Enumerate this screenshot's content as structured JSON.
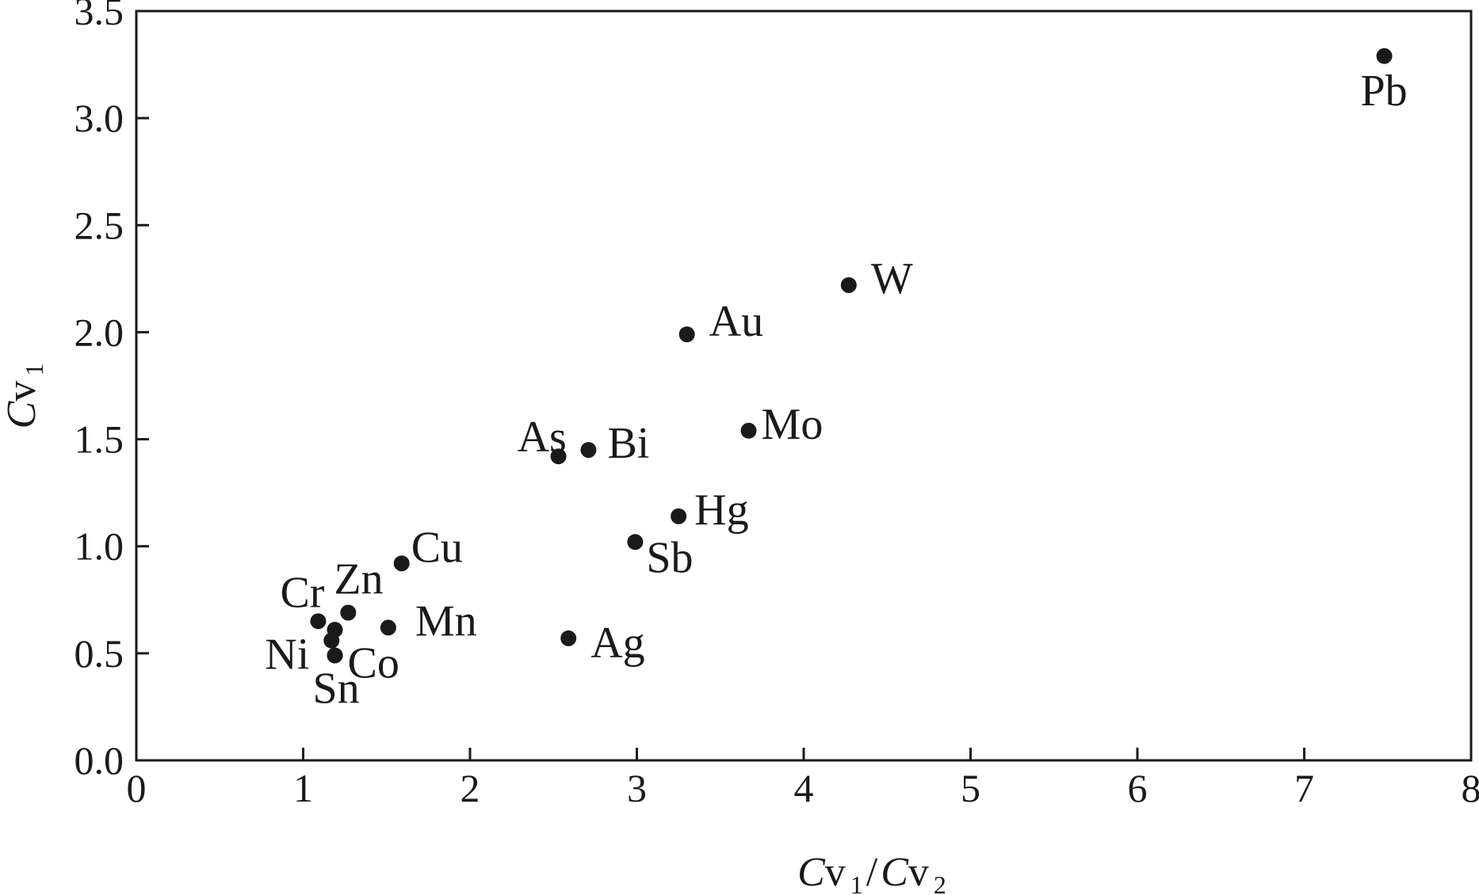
{
  "chart_data": {
    "type": "scatter",
    "xlabel_parts": {
      "c1": "C",
      "v1": "v",
      "s1": "1",
      "slash": "/",
      "c2": "C",
      "v2": "v",
      "s2": "2"
    },
    "ylabel_parts": {
      "c": "C",
      "v": "v",
      "s": "1"
    },
    "xlim": [
      0,
      8
    ],
    "ylim": [
      0.0,
      3.5
    ],
    "xticks": [
      "0",
      "1",
      "2",
      "3",
      "4",
      "5",
      "6",
      "7",
      "8"
    ],
    "yticks": [
      "0.0",
      "0.5",
      "1.0",
      "1.5",
      "2.0",
      "2.5",
      "3.0",
      "3.5"
    ],
    "grid": false,
    "points": [
      {
        "label": "Pb",
        "x": 7.48,
        "y": 3.29
      },
      {
        "label": "W",
        "x": 4.27,
        "y": 2.22
      },
      {
        "label": "Au",
        "x": 3.3,
        "y": 1.99
      },
      {
        "label": "Mo",
        "x": 3.67,
        "y": 1.54
      },
      {
        "label": "As",
        "x": 2.53,
        "y": 1.42
      },
      {
        "label": "Bi",
        "x": 2.71,
        "y": 1.45
      },
      {
        "label": "Hg",
        "x": 3.25,
        "y": 1.14
      },
      {
        "label": "Sb",
        "x": 2.99,
        "y": 1.02
      },
      {
        "label": "Cu",
        "x": 1.59,
        "y": 0.92
      },
      {
        "label": "Zn",
        "x": 1.27,
        "y": 0.69
      },
      {
        "label": "Cr",
        "x": 1.09,
        "y": 0.65
      },
      {
        "label": "Mn",
        "x": 1.51,
        "y": 0.62
      },
      {
        "label": "Ni",
        "x": 1.17,
        "y": 0.56
      },
      {
        "label": "",
        "x": 1.19,
        "y": 0.61
      },
      {
        "label": "Co",
        "x": 1.19,
        "y": 0.49
      },
      {
        "label": "Ag",
        "x": 2.59,
        "y": 0.57
      },
      {
        "label": "Sn",
        "x": 1.19,
        "y": 0.49
      }
    ]
  }
}
